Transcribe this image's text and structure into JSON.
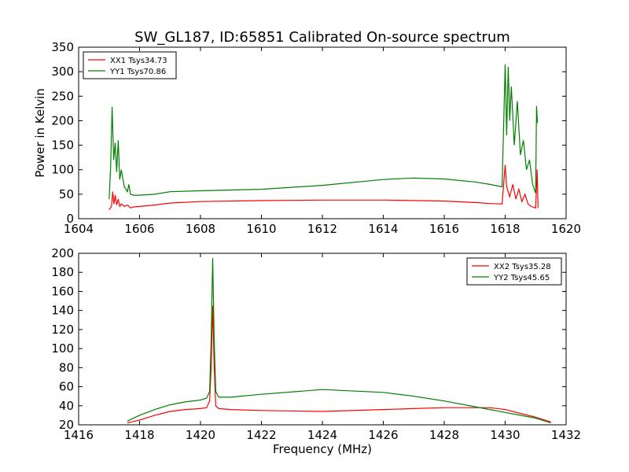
{
  "figure": {
    "title": "SW_GL187, ID:65851 Calibrated On-source spectrum"
  },
  "chart_data": [
    {
      "type": "line",
      "title": "SW_GL187, ID:65851 Calibrated On-source spectrum",
      "xlabel": "",
      "ylabel": "Power in Kelvin",
      "xlim": [
        1604,
        1620
      ],
      "ylim": [
        0,
        350
      ],
      "xticks": [
        "1604",
        "1606",
        "1608",
        "1610",
        "1612",
        "1614",
        "1616",
        "1618",
        "1620"
      ],
      "yticks": [
        "0",
        "50",
        "100",
        "150",
        "200",
        "250",
        "300",
        "350"
      ],
      "grid": false,
      "legend": "top-left",
      "series": [
        {
          "name": "XX1 Tsys34.73",
          "color": "#ff0000",
          "x": [
            1605.0,
            1605.08,
            1605.12,
            1605.16,
            1605.2,
            1605.25,
            1605.3,
            1605.35,
            1605.4,
            1605.5,
            1605.6,
            1605.7,
            1605.8,
            1606.0,
            1606.5,
            1607.0,
            1608.0,
            1610.0,
            1612.0,
            1614.0,
            1616.0,
            1617.0,
            1617.5,
            1617.9,
            1618.0,
            1618.05,
            1618.15,
            1618.25,
            1618.35,
            1618.45,
            1618.55,
            1618.65,
            1618.75,
            1618.85,
            1619.0,
            1619.05,
            1619.08
          ],
          "y": [
            18,
            25,
            55,
            30,
            48,
            28,
            40,
            25,
            30,
            25,
            28,
            22,
            24,
            25,
            28,
            32,
            35,
            37,
            38,
            38,
            36,
            33,
            31,
            30,
            110,
            65,
            45,
            70,
            40,
            60,
            35,
            50,
            30,
            25,
            22,
            100,
            22
          ]
        },
        {
          "name": "YY1 Tsys70.86",
          "color": "#008000",
          "x": [
            1605.0,
            1605.05,
            1605.1,
            1605.15,
            1605.2,
            1605.25,
            1605.3,
            1605.35,
            1605.4,
            1605.5,
            1605.6,
            1605.65,
            1605.7,
            1605.8,
            1606.0,
            1606.5,
            1607.0,
            1608.0,
            1610.0,
            1612.0,
            1614.0,
            1615.0,
            1616.0,
            1617.0,
            1617.5,
            1617.9,
            1618.0,
            1618.05,
            1618.1,
            1618.15,
            1618.2,
            1618.3,
            1618.4,
            1618.5,
            1618.6,
            1618.7,
            1618.8,
            1618.9,
            1619.0,
            1619.03,
            1619.06
          ],
          "y": [
            40,
            105,
            228,
            120,
            155,
            95,
            160,
            80,
            100,
            65,
            55,
            70,
            50,
            48,
            48,
            50,
            55,
            57,
            60,
            68,
            80,
            83,
            81,
            75,
            70,
            65,
            315,
            170,
            310,
            200,
            270,
            150,
            240,
            130,
            160,
            100,
            120,
            70,
            52,
            230,
            195
          ]
        }
      ]
    },
    {
      "type": "line",
      "title": "",
      "xlabel": "Frequency (MHz)",
      "ylabel": "",
      "xlim": [
        1416,
        1432
      ],
      "ylim": [
        20,
        200
      ],
      "xticks": [
        "1416",
        "1418",
        "1420",
        "1422",
        "1424",
        "1426",
        "1428",
        "1430",
        "1432"
      ],
      "yticks": [
        "20",
        "40",
        "60",
        "80",
        "100",
        "120",
        "140",
        "160",
        "180",
        "200"
      ],
      "grid": false,
      "legend": "top-right",
      "series": [
        {
          "name": "XX2 Tsys35.28",
          "color": "#ff0000",
          "x": [
            1417.6,
            1418.0,
            1418.5,
            1419.0,
            1419.5,
            1420.0,
            1420.2,
            1420.3,
            1420.35,
            1420.4,
            1420.45,
            1420.5,
            1420.6,
            1420.8,
            1421.0,
            1422.0,
            1424.0,
            1426.0,
            1427.0,
            1428.0,
            1429.0,
            1429.5,
            1430.0,
            1430.5,
            1431.0,
            1431.5
          ],
          "y": [
            22,
            25,
            30,
            34,
            36,
            37,
            38,
            45,
            80,
            145,
            80,
            40,
            37,
            36.5,
            36,
            35,
            34,
            36,
            37,
            38,
            38,
            38,
            36,
            32,
            28,
            23
          ]
        },
        {
          "name": "YY2 Tsys45.65",
          "color": "#008000",
          "x": [
            1417.6,
            1418.0,
            1418.5,
            1419.0,
            1419.5,
            1420.0,
            1420.2,
            1420.3,
            1420.35,
            1420.4,
            1420.45,
            1420.5,
            1420.6,
            1420.8,
            1421.0,
            1422.0,
            1424.0,
            1426.0,
            1427.0,
            1428.0,
            1429.0,
            1429.5,
            1430.0,
            1430.5,
            1431.0,
            1431.5
          ],
          "y": [
            24,
            30,
            36,
            41,
            44,
            46,
            48,
            55,
            110,
            195,
            110,
            55,
            49,
            49,
            49,
            52,
            57,
            54,
            50,
            45,
            39,
            36,
            33,
            30,
            27,
            22
          ]
        }
      ]
    }
  ]
}
